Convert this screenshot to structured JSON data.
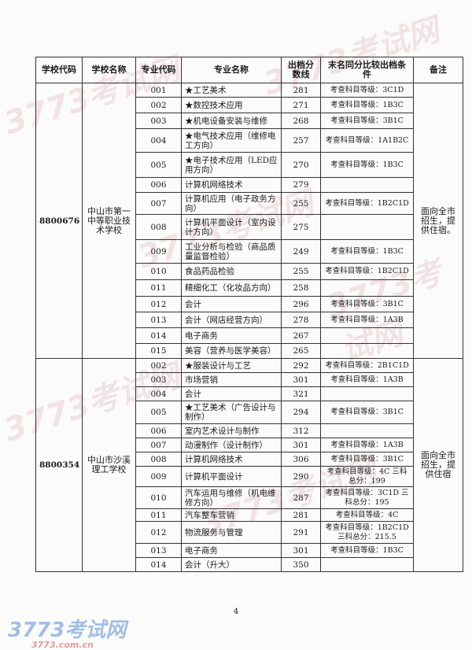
{
  "headers": [
    "学校代码",
    "学校名称",
    "专业代码",
    "专业名称",
    "出档分数线",
    "末名同分比较出档条件",
    "备注"
  ],
  "schools": [
    {
      "code": "8800676",
      "name": "中山市第一中等职业技术学校",
      "note": "面向全市招生，提供住宿。",
      "rows": [
        {
          "code": "001",
          "major": "★工艺美术",
          "score": "281",
          "cond": "考查科目等级：3C1D"
        },
        {
          "code": "002",
          "major": "★数控技术应用",
          "score": "271",
          "cond": "考查科目等级：1B3C"
        },
        {
          "code": "003",
          "major": "★机电设备安装与维修",
          "score": "268",
          "cond": "考查科目等级：3B1C"
        },
        {
          "code": "004",
          "major": "★电气技术应用（维修电工方向）",
          "score": "257",
          "cond": "考查科目等级：1A1B2C"
        },
        {
          "code": "005",
          "major": "★电子技术应用（LED应用方向）",
          "score": "270",
          "cond": "考查科目等级：1B3C"
        },
        {
          "code": "006",
          "major": "计算机网络技术",
          "score": "279",
          "cond": ""
        },
        {
          "code": "007",
          "major": "计算机应用（电子政务方向）",
          "score": "255",
          "cond": "考查科目等级：1B2C1D"
        },
        {
          "code": "008",
          "major": "计算机平面设计（室内设计方向）",
          "score": "275",
          "cond": ""
        },
        {
          "code": "009",
          "major": "工业分析与检验（商品质量监督检验）",
          "score": "249",
          "cond": "考查科目等级：1B3C"
        },
        {
          "code": "010",
          "major": "食品药品检验",
          "score": "255",
          "cond": "考查科目等级：1B2C1D"
        },
        {
          "code": "011",
          "major": "精细化工（化妆品方向）",
          "score": "258",
          "cond": ""
        },
        {
          "code": "012",
          "major": "会计",
          "score": "296",
          "cond": "考查科目等级：3B1C"
        },
        {
          "code": "013",
          "major": "会计（网店经营方向）",
          "score": "278",
          "cond": "考查科目等级：1A3B"
        },
        {
          "code": "014",
          "major": "电子商务",
          "score": "267",
          "cond": ""
        },
        {
          "code": "015",
          "major": "美容（营养与医学美容）",
          "score": "265",
          "cond": ""
        }
      ]
    },
    {
      "code": "8800354",
      "name": "中山市沙溪理工学校",
      "note": "面向全市招生，提供住宿",
      "rows": [
        {
          "code": "002",
          "major": "★服装设计与工艺",
          "score": "292",
          "cond": "考查科目等级：2B1C1D"
        },
        {
          "code": "003",
          "major": "市场营销",
          "score": "301",
          "cond": "考查科目等级：1A3B"
        },
        {
          "code": "004",
          "major": "会计",
          "score": "321",
          "cond": ""
        },
        {
          "code": "005",
          "major": "★工艺美术（广告设计与制作）",
          "score": "294",
          "cond": "考查科目等级：3B1C"
        },
        {
          "code": "006",
          "major": "室内艺术设计与制作",
          "score": "312",
          "cond": ""
        },
        {
          "code": "007",
          "major": "动漫制作（设计制作）",
          "score": "301",
          "cond": "考查科目等级：1A3B"
        },
        {
          "code": "008",
          "major": "计算机网络技术",
          "score": "306",
          "cond": "考查科目等级：3B1C"
        },
        {
          "code": "009",
          "major": "计算机平面设计",
          "score": "290",
          "cond": "考查科目等级：4C 三科总分：199"
        },
        {
          "code": "010",
          "major": "汽车运用与维修（机电维修方向）",
          "score": "287",
          "cond": "考查科目等级：3C1D 三科总分：195"
        },
        {
          "code": "011",
          "major": "汽车整车营销",
          "score": "281",
          "cond": "考查科目等级：4C"
        },
        {
          "code": "012",
          "major": "物流服务与管理",
          "score": "291",
          "cond": "考查科目等级：1B2C1D 三科总分：215.5"
        },
        {
          "code": "013",
          "major": "电子商务",
          "score": "301",
          "cond": "考查科目等级：1B3C"
        },
        {
          "code": "014",
          "major": "会计（升大）",
          "score": "350",
          "cond": ""
        }
      ]
    }
  ],
  "page_number": "4",
  "watermark": {
    "logo_text": "3773考试网",
    "logo_sub": "3773.com.cn"
  }
}
